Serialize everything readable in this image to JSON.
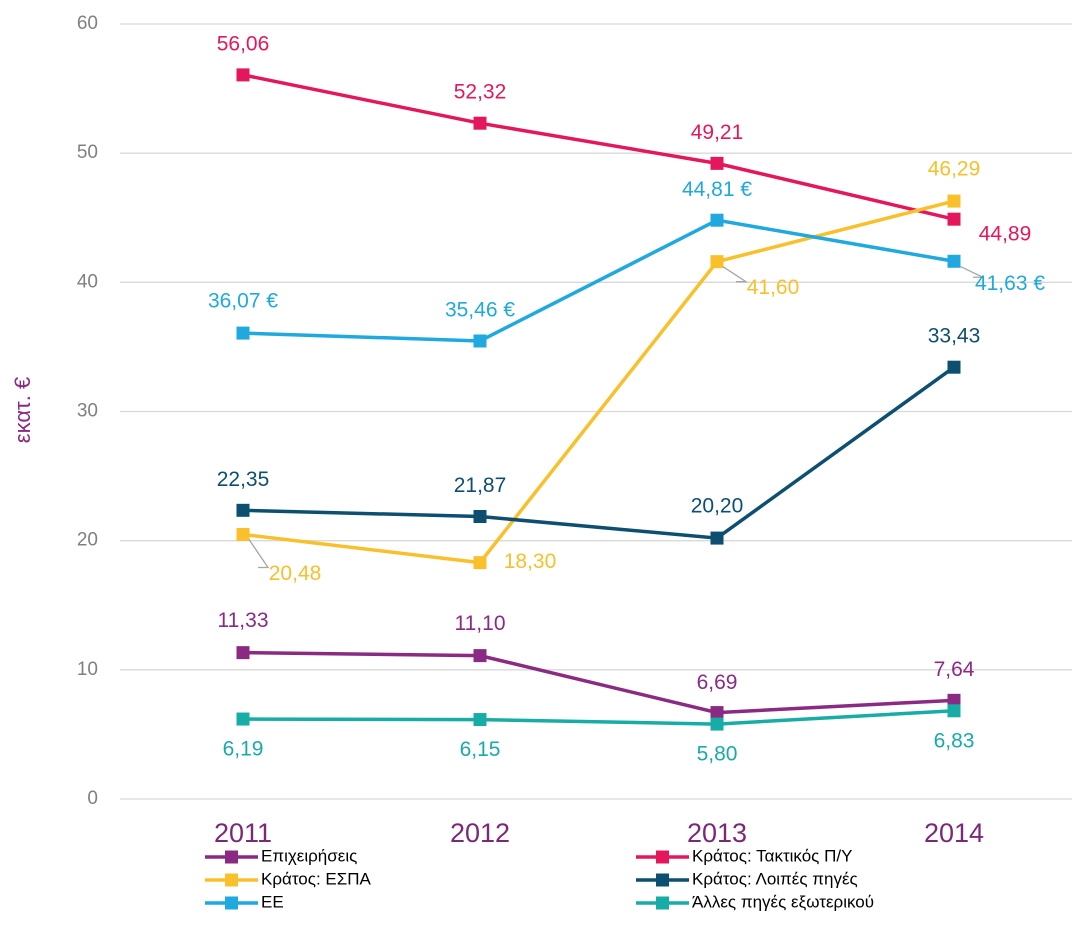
{
  "chart_data": {
    "type": "line",
    "categories": [
      "2011",
      "2012",
      "2013",
      "2014"
    ],
    "y_label": "εκατ. €",
    "ylim": [
      0,
      60
    ],
    "yticks": [
      0,
      10,
      20,
      30,
      40,
      50,
      60
    ],
    "grid": true,
    "series": [
      {
        "name": "Επιχειρήσεις",
        "color": "#8b2a83",
        "values": [
          11.33,
          11.1,
          6.69,
          7.64
        ],
        "value_labels": [
          "11,33",
          "11,10",
          "6,69",
          "7,64"
        ]
      },
      {
        "name": "Κράτος: Τακτικός Π/Υ",
        "color": "#e5175c",
        "values": [
          56.06,
          52.32,
          49.21,
          44.89
        ],
        "value_labels": [
          "56,06",
          "52,32",
          "49,21",
          "44,89"
        ]
      },
      {
        "name": "Κράτος: ΕΣΠΑ",
        "color": "#f9c02b",
        "values": [
          20.48,
          18.3,
          41.6,
          46.29
        ],
        "value_labels": [
          "20,48",
          "18,30",
          "41,60",
          "46,29"
        ]
      },
      {
        "name": "Κράτος: Λοιπές πηγές",
        "color": "#0d4f70",
        "values": [
          22.35,
          21.87,
          20.2,
          33.43
        ],
        "value_labels": [
          "22,35",
          "21,87",
          "20,20",
          "33,43"
        ]
      },
      {
        "name": "ΕΕ",
        "color": "#1fa9de",
        "values": [
          36.07,
          35.46,
          44.81,
          41.63
        ],
        "value_labels": [
          "36,07 €",
          "35,46 €",
          "44,81 €",
          "41,63 €"
        ]
      },
      {
        "name": "Άλλες πηγές εξωτερικού",
        "color": "#17aca5",
        "values": [
          6.19,
          6.15,
          5.8,
          6.83
        ],
        "value_labels": [
          "6,19",
          "6,15",
          "5,80",
          "6,83"
        ]
      }
    ]
  }
}
